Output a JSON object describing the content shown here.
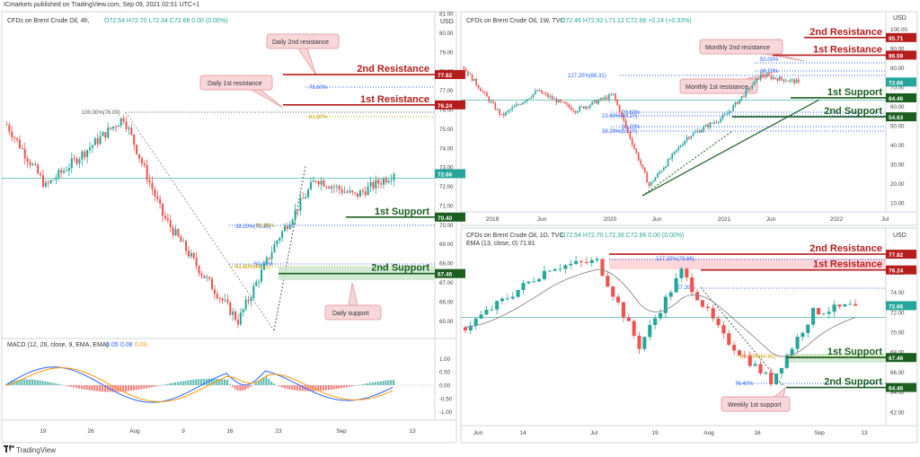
{
  "header": {
    "published": "ICmarkets published on TradingView.com, Sep 09, 2021 02:51 UTC+1"
  },
  "footer": {
    "brand": "TradingView"
  },
  "colors": {
    "up": "#26a69a",
    "down": "#ef5350",
    "resistance": "#b71c1c",
    "support": "#1b5e20",
    "fib": "#2962ff",
    "fib_gold": "#c8a000",
    "price_tag": "#26a69a"
  },
  "panels": {
    "p4h": {
      "title": "CFDs on Brent Crude Oil, 4h,",
      "ohlc": "O72.54  H72.70  L72.34  C72.66  0.00 (0.00%)",
      "currency": "USD",
      "price_tag": "72.66",
      "levels": [
        {
          "label": "2nd Resistance",
          "tag": "77.82",
          "value": 77.82,
          "kind": "res"
        },
        {
          "label": "1st Resistance",
          "tag": "76.24",
          "value": 76.24,
          "kind": "res"
        },
        {
          "label": "1st Support",
          "tag": "70.40",
          "value": 70.4,
          "kind": "sup"
        },
        {
          "label": "2nd Support",
          "tag": "67.46",
          "value": 67.46,
          "kind": "sup"
        }
      ],
      "callouts": [
        "Daily 2nd resistance",
        "Daily 1st resistance",
        "Daily support"
      ],
      "fib_labels": [
        "100.00%(76.09)",
        "78.60%",
        "61.80%",
        "38.20%(70.25)",
        "50.00%",
        "61.80%(68.11)",
        "61.80%"
      ],
      "yticks": [
        "81.00",
        "80.00",
        "79.00",
        "78.00",
        "77.00",
        "76.00",
        "75.00",
        "74.00",
        "73.00",
        "72.00",
        "71.00",
        "70.00",
        "69.00",
        "68.00",
        "67.00",
        "66.00",
        "65.00"
      ],
      "xticks": [
        "19",
        "26",
        "Aug",
        "9",
        "16",
        "23",
        "Sep",
        "13"
      ],
      "macd": {
        "title": "MACD (12, 26, close, 9, EMA, EMA)",
        "values": [
          "0.05",
          "0.08",
          "0.03"
        ],
        "yticks": [
          "1.00",
          "0.50",
          "0.00",
          "-0.50",
          "-1.00"
        ]
      }
    },
    "p1w": {
      "title": "CFDs on Brent Crude Oil, 1W, TVC",
      "ohlc": "O72.46  H72.92  L71.12  C72.66  +0.24 (+0.33%)",
      "currency": "USD",
      "price_tag": "72.66",
      "levels": [
        {
          "label": "2nd Resistance",
          "tag": "95.71",
          "value": 95.71,
          "kind": "res"
        },
        {
          "label": "1st Resistance",
          "tag": "86.59",
          "value": 86.59,
          "kind": "res"
        },
        {
          "label": "1st Support",
          "tag": "64.46",
          "value": 64.46,
          "kind": "sup"
        },
        {
          "label": "2nd Support",
          "tag": "54.63",
          "value": 54.63,
          "kind": "sup"
        }
      ],
      "callouts": [
        "Monthly 2nd resistance",
        "Monthly 1st resistance"
      ],
      "fib_labels": [
        "50.00%",
        "127.20%(86.31)",
        "38.20%",
        "23.60%",
        "23.60%(63.27)",
        "50.20%",
        "38.20%(53.27)"
      ],
      "yticks": [
        "100.00",
        "90.00",
        "80.00",
        "70.00",
        "60.00",
        "50.00",
        "40.00",
        "30.00",
        "20.00",
        "10.00"
      ],
      "xticks": [
        "2019",
        "Jun",
        "2020",
        "Jun",
        "2021",
        "Jun",
        "2022",
        "Jul"
      ]
    },
    "p1d": {
      "title": "CFDs on Brent Crude Oil, 1D, TVC",
      "ohlc": "O72.54  H72.70  L72.38  C72.66  0.00 (0.00%)",
      "ema": "EMA (13, close, 0)  71.81",
      "currency": "USD",
      "price_tag": "72.66",
      "levels": [
        {
          "label": "2nd Resistance",
          "tag": "77.82",
          "value": 77.82,
          "kind": "res"
        },
        {
          "label": "1st Resistance",
          "tag": "76.24",
          "value": 76.24,
          "kind": "res"
        },
        {
          "label": "1st Support",
          "tag": "67.46",
          "value": 67.46,
          "kind": "sup"
        },
        {
          "label": "2nd Support",
          "tag": "64.46",
          "value": 64.46,
          "kind": "sup"
        }
      ],
      "callouts": [
        "Weekly 1st support"
      ],
      "fib_labels": [
        "127.20%(78.66)",
        "127.20%",
        "61.80%(67.91)",
        "76.40%"
      ],
      "yticks": [
        "78.00",
        "76.00",
        "74.00",
        "72.00",
        "70.00",
        "68.00",
        "66.00",
        "64.00",
        "62.00"
      ],
      "xticks": [
        "Jun",
        "14",
        "Jul",
        "19",
        "Aug",
        "16",
        "Sep",
        "13"
      ]
    }
  },
  "chart_data": [
    {
      "type": "line",
      "title": "CFDs on Brent Crude Oil, 4h,",
      "x": [
        "Jul 15",
        "Jul 19",
        "Jul 26",
        "Aug 2",
        "Aug 9",
        "Aug 16",
        "Aug 20",
        "Aug 23",
        "Aug 26",
        "Sep 1",
        "Sep 8"
      ],
      "series": [
        {
          "values": [
            75.2,
            72.0,
            73.8,
            75.6,
            70.5,
            67.5,
            65.0,
            69.2,
            72.4,
            71.5,
            72.66
          ]
        }
      ],
      "ylim": [
        64.5,
        81.0
      ]
    },
    {
      "type": "line",
      "title": "CFDs on Brent Crude Oil, 1W, TVC",
      "x": [
        "2018-10",
        "2019-01",
        "2019-06",
        "2019-10",
        "2020-01",
        "2020-04",
        "2020-08",
        "2021-01",
        "2021-06",
        "2021-09"
      ],
      "series": [
        {
          "values": [
            80,
            55,
            68,
            58,
            66,
            19,
            44,
            55,
            76,
            72.66
          ]
        }
      ],
      "ylim": [
        10,
        104
      ]
    },
    {
      "type": "line",
      "title": "CFDs on Brent Crude Oil, 1D, TVC",
      "x": [
        "Jun 1",
        "Jun 14",
        "Jul 1",
        "Jul 6",
        "Jul 19",
        "Jul 30",
        "Aug 16",
        "Aug 20",
        "Aug 30",
        "Sep 8"
      ],
      "series": [
        {
          "values": [
            70.5,
            73.5,
            76.5,
            77.1,
            68.6,
            76.1,
            69.5,
            65.1,
            72.0,
            72.66
          ]
        }
      ],
      "ylim": [
        61,
        79
      ]
    }
  ]
}
